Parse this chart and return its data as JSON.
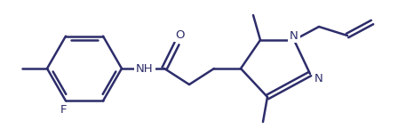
{
  "bg_color": "#ffffff",
  "line_color": "#2d2d6b",
  "line_width": 1.8,
  "font_size": 9.5,
  "figsize": [
    4.48,
    1.54
  ],
  "dpi": 100,
  "xlim": [
    0,
    448
  ],
  "ylim": [
    0,
    154
  ]
}
